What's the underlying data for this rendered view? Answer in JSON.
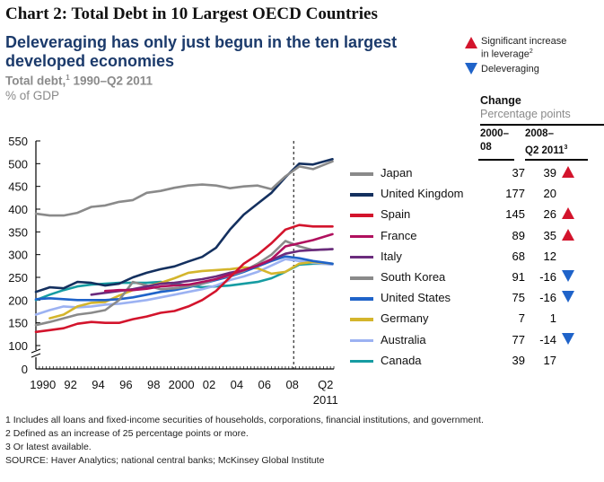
{
  "header": {
    "chart_label": "Chart 2:   Total Debt in 10 Largest OECD Countries",
    "headline": "Deleveraging has only just begun in the ten largest developed economies",
    "subtitle_prefix": "Total debt,",
    "subtitle_sup": "1",
    "subtitle_suffix": " 1990–Q2 2011",
    "unit": "% of GDP"
  },
  "key": {
    "increase_label": "Significant increase",
    "increase_label2": "in leverage",
    "increase_sup": "2",
    "increase_color": "#d3142c",
    "delever_label": "Deleveraging",
    "delever_color": "#1f63c9"
  },
  "table": {
    "change_title": "Change",
    "change_subtitle": "Percentage points",
    "col1_line1": "2000–",
    "col1_line2": "08",
    "col2_line1": "2008–",
    "col2_line2": "Q2 2011",
    "col2_sup": "3"
  },
  "footnotes": {
    "f1": "1  Includes all loans and fixed-income securities of households, corporations, financial institutions, and government.",
    "f2": "2  Defined as an increase of 25 percentage points or more.",
    "f3": "3  Or latest available.",
    "source": "SOURCE: Haver Analytics; national central banks; McKinsey Global Institute"
  },
  "chart_data": {
    "type": "line",
    "title": "Total debt, 1990–Q2 2011",
    "ylabel": "% of GDP",
    "xlabel": "",
    "ylim": [
      0,
      550
    ],
    "axis_break": [
      0,
      100
    ],
    "yticks": [
      0,
      100,
      150,
      200,
      250,
      300,
      350,
      400,
      450,
      500,
      550
    ],
    "ytick_labels": [
      "0",
      "100",
      "150",
      "200",
      "250",
      "300",
      "350",
      "400",
      "450",
      "500",
      "550"
    ],
    "xlim": [
      1990,
      2011.5
    ],
    "xtick_labels": [
      {
        "x": 1990.5,
        "label": "1990"
      },
      {
        "x": 1992.5,
        "label": "92"
      },
      {
        "x": 1994.5,
        "label": "94"
      },
      {
        "x": 1996.5,
        "label": "96"
      },
      {
        "x": 1998.5,
        "label": "98"
      },
      {
        "x": 2000.5,
        "label": "2000"
      },
      {
        "x": 2002.5,
        "label": "02"
      },
      {
        "x": 2004.5,
        "label": "04"
      },
      {
        "x": 2006.5,
        "label": "06"
      },
      {
        "x": 2008.5,
        "label": "08"
      },
      {
        "x": 2010.9,
        "label": "Q2"
      }
    ],
    "xtick_sublabel": {
      "x": 2010.9,
      "label": "2011"
    },
    "reference_line": {
      "x": 2008.6,
      "style": "dashed"
    },
    "grid": false,
    "legend_placement": "right",
    "x": [
      1990,
      1991,
      1992,
      1993,
      1994,
      1995,
      1996,
      1997,
      1998,
      1999,
      2000,
      2001,
      2002,
      2003,
      2004,
      2005,
      2006,
      2007,
      2008,
      2009,
      2010,
      2011.4
    ],
    "series": [
      {
        "name": "Japan",
        "color": "#8a8a8a",
        "change_2000_08": "37",
        "change_2008_q2_2011": "39",
        "marker": "up",
        "values": [
          390,
          386,
          386,
          392,
          405,
          408,
          416,
          420,
          436,
          440,
          447,
          452,
          454,
          452,
          446,
          450,
          452,
          444,
          472,
          494,
          488,
          505
        ]
      },
      {
        "name": "United Kingdom",
        "color": "#14305f",
        "change_2000_08": "177",
        "change_2008_q2_2011": "20",
        "marker": "",
        "values": [
          218,
          228,
          226,
          240,
          238,
          232,
          236,
          250,
          260,
          268,
          274,
          285,
          295,
          315,
          355,
          388,
          412,
          436,
          470,
          500,
          498,
          510
        ]
      },
      {
        "name": "Spain",
        "color": "#d3142c",
        "change_2000_08": "145",
        "change_2008_q2_2011": "26",
        "marker": "up",
        "values": [
          130,
          134,
          138,
          148,
          152,
          150,
          150,
          158,
          164,
          172,
          176,
          186,
          200,
          220,
          250,
          280,
          300,
          325,
          355,
          365,
          362,
          362
        ]
      },
      {
        "name": "France",
        "color": "#b0105e",
        "change_2000_08": "89",
        "change_2008_q2_2011": "35",
        "marker": "up",
        "values": [
          null,
          null,
          null,
          null,
          null,
          220,
          222,
          222,
          225,
          230,
          232,
          234,
          240,
          246,
          256,
          266,
          276,
          290,
          318,
          325,
          332,
          345
        ]
      },
      {
        "name": "Italy",
        "color": "#6b2c7d",
        "change_2000_08": "68",
        "change_2008_q2_2011": "12",
        "marker": "",
        "values": [
          null,
          null,
          null,
          null,
          212,
          216,
          220,
          224,
          230,
          236,
          238,
          242,
          246,
          252,
          260,
          266,
          276,
          288,
          302,
          308,
          310,
          312
        ]
      },
      {
        "name": "South Korea",
        "color": "#8a8a8a",
        "change_2000_08": "91",
        "change_2008_q2_2011": "-16",
        "marker": "down",
        "values": [
          145,
          152,
          160,
          168,
          172,
          178,
          200,
          240,
          232,
          224,
          226,
          230,
          236,
          246,
          254,
          264,
          280,
          300,
          330,
          318,
          310,
          312
        ]
      },
      {
        "name": "United States",
        "color": "#1f63c9",
        "change_2000_08": "75",
        "change_2008_q2_2011": "-16",
        "marker": "down",
        "values": [
          202,
          204,
          202,
          200,
          200,
          200,
          202,
          206,
          212,
          218,
          222,
          228,
          236,
          244,
          252,
          262,
          274,
          286,
          296,
          292,
          286,
          280
        ]
      },
      {
        "name": "Germany",
        "color": "#d4b52c",
        "change_2000_08": "7",
        "change_2008_q2_2011": "1",
        "marker": "",
        "values": [
          null,
          160,
          168,
          186,
          194,
          196,
          210,
          222,
          230,
          238,
          248,
          260,
          264,
          266,
          268,
          272,
          270,
          258,
          262,
          280,
          284,
          280
        ]
      },
      {
        "name": "Australia",
        "color": "#9cb2f2",
        "change_2000_08": "77",
        "change_2008_q2_2011": "-14",
        "marker": "down",
        "values": [
          168,
          178,
          186,
          184,
          186,
          190,
          192,
          196,
          200,
          206,
          212,
          218,
          224,
          232,
          244,
          252,
          262,
          276,
          290,
          286,
          282,
          278
        ]
      },
      {
        "name": "Canada",
        "color": "#169ca2",
        "change_2000_08": "39",
        "change_2008_q2_2011": "17",
        "marker": "",
        "values": [
          200,
          212,
          222,
          230,
          234,
          236,
          238,
          238,
          238,
          240,
          236,
          232,
          228,
          230,
          232,
          236,
          240,
          248,
          262,
          278,
          280,
          280
        ]
      }
    ]
  }
}
